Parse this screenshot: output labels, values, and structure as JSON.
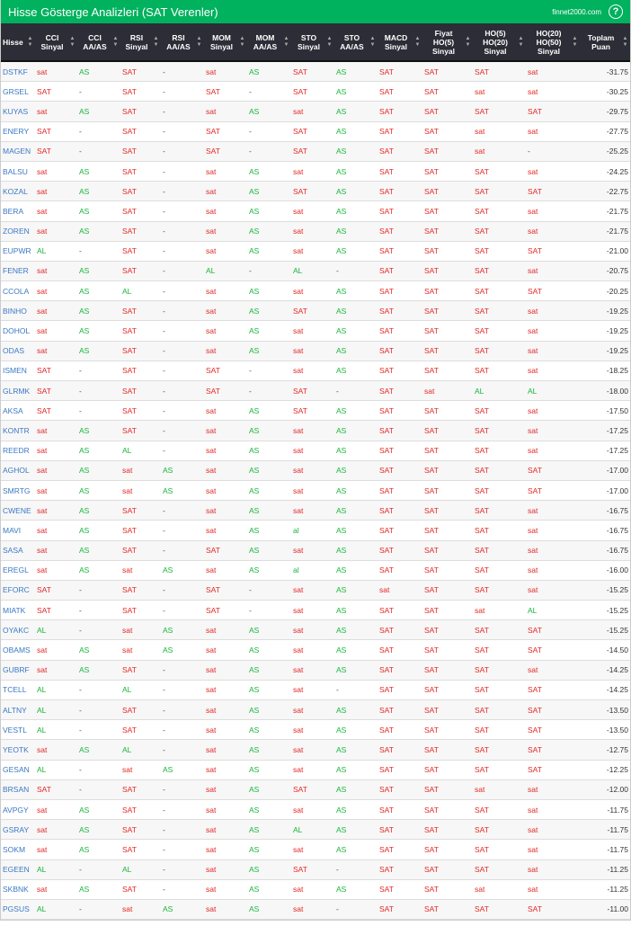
{
  "header": {
    "title": "Hisse Gösterge Analizleri (SAT Verenler)",
    "site": "finnet2000.com",
    "help_icon": "?"
  },
  "colors": {
    "brand": "#00b15e",
    "header_bg": "#2c2d36",
    "sell": "#e52626",
    "buy": "#17b53a",
    "ticker": "#3a78c4"
  },
  "columns": [
    "Hisse",
    "CCI Sinyal",
    "CCI AA/AS",
    "RSI Sinyal",
    "RSI AA/AS",
    "MOM Sinyal",
    "MOM AA/AS",
    "STO Sinyal",
    "STO AA/AS",
    "MACD Sinyal",
    "Fiyat HO(5) Sinyal",
    "HO(5) HO(20) Sinyal",
    "HO(20) HO(50) Sinyal",
    "Toplam Puan"
  ],
  "rows": [
    [
      "DSTKF",
      "sat",
      "AS",
      "SAT",
      "-",
      "sat",
      "AS",
      "SAT",
      "AS",
      "SAT",
      "SAT",
      "SAT",
      "sat",
      "-31.75"
    ],
    [
      "GRSEL",
      "SAT",
      "-",
      "SAT",
      "-",
      "SAT",
      "-",
      "SAT",
      "AS",
      "SAT",
      "SAT",
      "sat",
      "sat",
      "-30.25"
    ],
    [
      "KUYAS",
      "sat",
      "AS",
      "SAT",
      "-",
      "sat",
      "AS",
      "sat",
      "AS",
      "SAT",
      "SAT",
      "SAT",
      "SAT",
      "-29.75"
    ],
    [
      "ENERY",
      "SAT",
      "-",
      "SAT",
      "-",
      "SAT",
      "-",
      "SAT",
      "AS",
      "SAT",
      "SAT",
      "sat",
      "sat",
      "-27.75"
    ],
    [
      "MAGEN",
      "SAT",
      "-",
      "SAT",
      "-",
      "SAT",
      "-",
      "SAT",
      "AS",
      "SAT",
      "SAT",
      "sat",
      "-",
      "-25.25"
    ],
    [
      "BALSU",
      "sat",
      "AS",
      "SAT",
      "-",
      "sat",
      "AS",
      "sat",
      "AS",
      "SAT",
      "SAT",
      "SAT",
      "sat",
      "-24.25"
    ],
    [
      "KOZAL",
      "sat",
      "AS",
      "SAT",
      "-",
      "sat",
      "AS",
      "SAT",
      "AS",
      "SAT",
      "SAT",
      "SAT",
      "SAT",
      "-22.75"
    ],
    [
      "BERA",
      "sat",
      "AS",
      "SAT",
      "-",
      "sat",
      "AS",
      "sat",
      "AS",
      "SAT",
      "SAT",
      "SAT",
      "sat",
      "-21.75"
    ],
    [
      "ZOREN",
      "sat",
      "AS",
      "SAT",
      "-",
      "sat",
      "AS",
      "sat",
      "AS",
      "SAT",
      "SAT",
      "SAT",
      "sat",
      "-21.75"
    ],
    [
      "EUPWR",
      "AL",
      "-",
      "SAT",
      "-",
      "sat",
      "AS",
      "sat",
      "AS",
      "SAT",
      "SAT",
      "SAT",
      "SAT",
      "-21.00"
    ],
    [
      "FENER",
      "sat",
      "AS",
      "SAT",
      "-",
      "AL",
      "-",
      "AL",
      "-",
      "SAT",
      "SAT",
      "SAT",
      "sat",
      "-20.75"
    ],
    [
      "CCOLA",
      "sat",
      "AS",
      "AL",
      "-",
      "sat",
      "AS",
      "sat",
      "AS",
      "SAT",
      "SAT",
      "SAT",
      "SAT",
      "-20.25"
    ],
    [
      "BINHO",
      "sat",
      "AS",
      "SAT",
      "-",
      "sat",
      "AS",
      "SAT",
      "AS",
      "SAT",
      "SAT",
      "SAT",
      "sat",
      "-19.25"
    ],
    [
      "DOHOL",
      "sat",
      "AS",
      "SAT",
      "-",
      "sat",
      "AS",
      "sat",
      "AS",
      "SAT",
      "SAT",
      "SAT",
      "sat",
      "-19.25"
    ],
    [
      "ODAS",
      "sat",
      "AS",
      "SAT",
      "-",
      "sat",
      "AS",
      "sat",
      "AS",
      "SAT",
      "SAT",
      "SAT",
      "sat",
      "-19.25"
    ],
    [
      "ISMEN",
      "SAT",
      "-",
      "SAT",
      "-",
      "SAT",
      "-",
      "sat",
      "AS",
      "SAT",
      "SAT",
      "SAT",
      "sat",
      "-18.25"
    ],
    [
      "GLRMK",
      "SAT",
      "-",
      "SAT",
      "-",
      "SAT",
      "-",
      "SAT",
      "-",
      "SAT",
      "sat",
      "AL",
      "AL",
      "-18.00"
    ],
    [
      "AKSA",
      "SAT",
      "-",
      "SAT",
      "-",
      "sat",
      "AS",
      "SAT",
      "AS",
      "SAT",
      "SAT",
      "SAT",
      "sat",
      "-17.50"
    ],
    [
      "KONTR",
      "sat",
      "AS",
      "SAT",
      "-",
      "sat",
      "AS",
      "sat",
      "AS",
      "SAT",
      "SAT",
      "SAT",
      "sat",
      "-17.25"
    ],
    [
      "REEDR",
      "sat",
      "AS",
      "AL",
      "-",
      "sat",
      "AS",
      "sat",
      "AS",
      "SAT",
      "SAT",
      "SAT",
      "sat",
      "-17.25"
    ],
    [
      "AGHOL",
      "sat",
      "AS",
      "sat",
      "AS",
      "sat",
      "AS",
      "sat",
      "AS",
      "SAT",
      "SAT",
      "SAT",
      "SAT",
      "-17.00"
    ],
    [
      "SMRTG",
      "sat",
      "AS",
      "sat",
      "AS",
      "sat",
      "AS",
      "sat",
      "AS",
      "SAT",
      "SAT",
      "SAT",
      "SAT",
      "-17.00"
    ],
    [
      "CWENE",
      "sat",
      "AS",
      "SAT",
      "-",
      "sat",
      "AS",
      "sat",
      "AS",
      "SAT",
      "SAT",
      "SAT",
      "sat",
      "-16.75"
    ],
    [
      "MAVI",
      "sat",
      "AS",
      "SAT",
      "-",
      "sat",
      "AS",
      "al",
      "AS",
      "SAT",
      "SAT",
      "SAT",
      "sat",
      "-16.75"
    ],
    [
      "SASA",
      "sat",
      "AS",
      "SAT",
      "-",
      "SAT",
      "AS",
      "sat",
      "AS",
      "SAT",
      "SAT",
      "SAT",
      "sat",
      "-16.75"
    ],
    [
      "EREGL",
      "sat",
      "AS",
      "sat",
      "AS",
      "sat",
      "AS",
      "al",
      "AS",
      "SAT",
      "SAT",
      "SAT",
      "sat",
      "-16.00"
    ],
    [
      "EFORC",
      "SAT",
      "-",
      "SAT",
      "-",
      "SAT",
      "-",
      "sat",
      "AS",
      "sat",
      "SAT",
      "SAT",
      "sat",
      "-15.25"
    ],
    [
      "MIATK",
      "SAT",
      "-",
      "SAT",
      "-",
      "SAT",
      "-",
      "sat",
      "AS",
      "SAT",
      "SAT",
      "sat",
      "AL",
      "-15.25"
    ],
    [
      "OYAKC",
      "AL",
      "-",
      "sat",
      "AS",
      "sat",
      "AS",
      "sat",
      "AS",
      "SAT",
      "SAT",
      "SAT",
      "SAT",
      "-15.25"
    ],
    [
      "OBAMS",
      "sat",
      "AS",
      "sat",
      "AS",
      "sat",
      "AS",
      "sat",
      "AS",
      "SAT",
      "SAT",
      "SAT",
      "SAT",
      "-14.50"
    ],
    [
      "GUBRF",
      "sat",
      "AS",
      "SAT",
      "-",
      "sat",
      "AS",
      "sat",
      "AS",
      "SAT",
      "SAT",
      "SAT",
      "sat",
      "-14.25"
    ],
    [
      "TCELL",
      "AL",
      "-",
      "AL",
      "-",
      "sat",
      "AS",
      "sat",
      "-",
      "SAT",
      "SAT",
      "SAT",
      "SAT",
      "-14.25"
    ],
    [
      "ALTNY",
      "AL",
      "-",
      "SAT",
      "-",
      "sat",
      "AS",
      "sat",
      "AS",
      "SAT",
      "SAT",
      "SAT",
      "SAT",
      "-13.50"
    ],
    [
      "VESTL",
      "AL",
      "-",
      "SAT",
      "-",
      "sat",
      "AS",
      "sat",
      "AS",
      "SAT",
      "SAT",
      "SAT",
      "SAT",
      "-13.50"
    ],
    [
      "YEOTK",
      "sat",
      "AS",
      "AL",
      "-",
      "sat",
      "AS",
      "sat",
      "AS",
      "SAT",
      "SAT",
      "SAT",
      "SAT",
      "-12.75"
    ],
    [
      "GESAN",
      "AL",
      "-",
      "sat",
      "AS",
      "sat",
      "AS",
      "sat",
      "AS",
      "SAT",
      "SAT",
      "SAT",
      "SAT",
      "-12.25"
    ],
    [
      "BRSAN",
      "SAT",
      "-",
      "SAT",
      "-",
      "sat",
      "AS",
      "SAT",
      "AS",
      "SAT",
      "SAT",
      "sat",
      "sat",
      "-12.00"
    ],
    [
      "AVPGY",
      "sat",
      "AS",
      "SAT",
      "-",
      "sat",
      "AS",
      "sat",
      "AS",
      "SAT",
      "SAT",
      "SAT",
      "sat",
      "-11.75"
    ],
    [
      "GSRAY",
      "sat",
      "AS",
      "SAT",
      "-",
      "sat",
      "AS",
      "AL",
      "AS",
      "SAT",
      "SAT",
      "SAT",
      "sat",
      "-11.75"
    ],
    [
      "SOKM",
      "sat",
      "AS",
      "SAT",
      "-",
      "sat",
      "AS",
      "sat",
      "AS",
      "SAT",
      "SAT",
      "SAT",
      "sat",
      "-11.75"
    ],
    [
      "EGEEN",
      "AL",
      "-",
      "AL",
      "-",
      "sat",
      "AS",
      "SAT",
      "-",
      "SAT",
      "SAT",
      "SAT",
      "sat",
      "-11.25"
    ],
    [
      "SKBNK",
      "sat",
      "AS",
      "SAT",
      "-",
      "sat",
      "AS",
      "sat",
      "AS",
      "SAT",
      "SAT",
      "sat",
      "sat",
      "-11.25"
    ],
    [
      "PGSUS",
      "AL",
      "-",
      "sat",
      "AS",
      "sat",
      "AS",
      "sat",
      "-",
      "SAT",
      "SAT",
      "SAT",
      "SAT",
      "-11.00"
    ]
  ]
}
